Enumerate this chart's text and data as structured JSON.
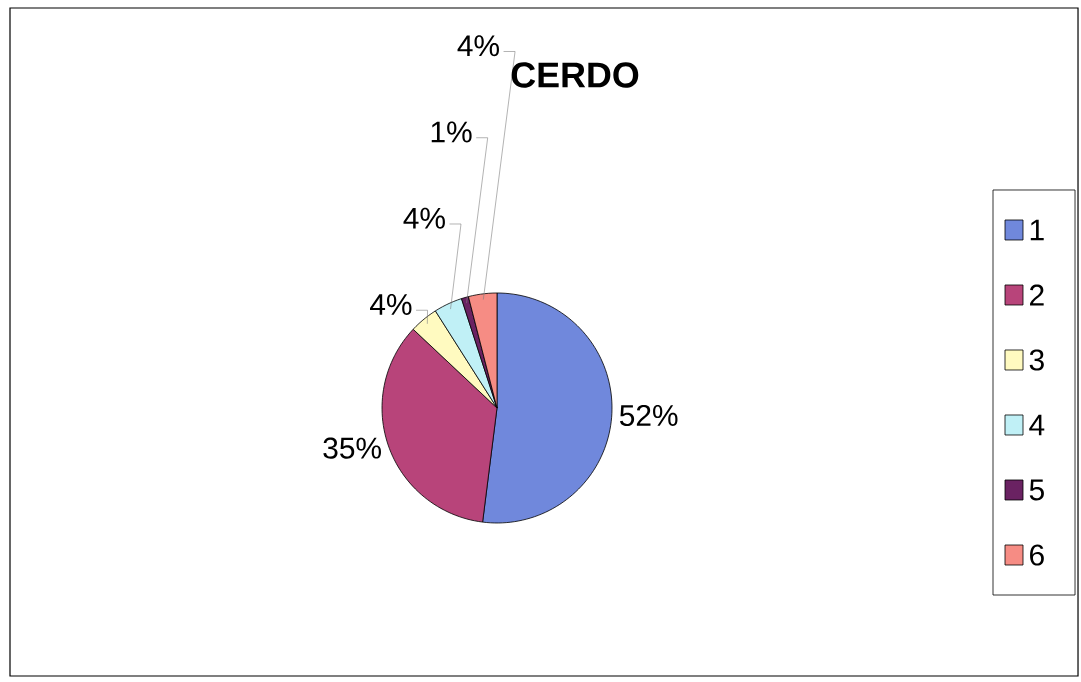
{
  "chart_data": {
    "type": "pie",
    "title": "CERDO",
    "categories": [
      "1",
      "2",
      "3",
      "4",
      "5",
      "6"
    ],
    "values": [
      52,
      35,
      4,
      4,
      1,
      4
    ],
    "value_labels": [
      "52%",
      "35%",
      "4%",
      "4%",
      "1%",
      "4%"
    ],
    "colors": [
      "#7088dc",
      "#b8447a",
      "#fffac0",
      "#c0f0f6",
      "#6a2262",
      "#f68c84"
    ],
    "legend": "right"
  }
}
